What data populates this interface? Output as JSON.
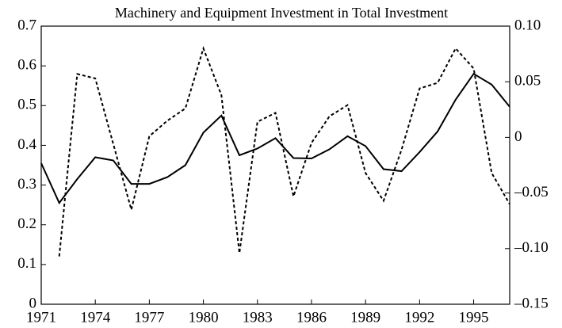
{
  "chart_data": {
    "type": "line",
    "title": "Machinery and Equipment Investment in Total Investment",
    "x": [
      1971,
      1972,
      1973,
      1974,
      1975,
      1976,
      1977,
      1978,
      1979,
      1980,
      1981,
      1982,
      1983,
      1984,
      1985,
      1986,
      1987,
      1988,
      1989,
      1990,
      1991,
      1992,
      1993,
      1994,
      1995,
      1996,
      1997
    ],
    "series": [
      {
        "color": "#000000",
        "style": "solid",
        "axis": "y",
        "values": [
          0.355,
          0.255,
          0.315,
          0.37,
          0.362,
          0.303,
          0.303,
          0.32,
          0.35,
          0.432,
          0.475,
          0.375,
          0.392,
          0.418,
          0.368,
          0.367,
          0.39,
          0.423,
          0.398,
          0.34,
          0.335,
          0.383,
          0.435,
          0.515,
          0.58,
          0.553,
          0.497
        ]
      },
      {
        "color": "#000000",
        "style": "dashed",
        "axis": "y2",
        "values": [
          null,
          -0.107,
          0.057,
          0.053,
          -0.006,
          -0.065,
          0.001,
          0.015,
          0.026,
          0.08,
          0.038,
          -0.104,
          0.014,
          0.022,
          -0.053,
          -0.005,
          0.019,
          0.029,
          -0.032,
          -0.057,
          -0.011,
          0.044,
          0.049,
          0.08,
          0.062,
          -0.032,
          -0.06
        ]
      }
    ],
    "xlim": [
      1971,
      1997
    ],
    "xticks": [
      1971,
      1974,
      1977,
      1980,
      1983,
      1986,
      1989,
      1992,
      1995
    ],
    "ylim": [
      0,
      0.7
    ],
    "yticks": [
      0,
      0.1,
      0.2,
      0.3,
      0.4,
      0.5,
      0.6,
      0.7
    ],
    "y2lim": [
      -0.15,
      0.1
    ],
    "y2ticks": [
      {
        "value": -0.15,
        "label": "–0.15"
      },
      {
        "value": -0.1,
        "label": "–0.10"
      },
      {
        "value": -0.05,
        "label": "–0.05"
      },
      0,
      0.05,
      {
        "value": 0.1,
        "label": "0.10"
      }
    ],
    "grid": false
  }
}
